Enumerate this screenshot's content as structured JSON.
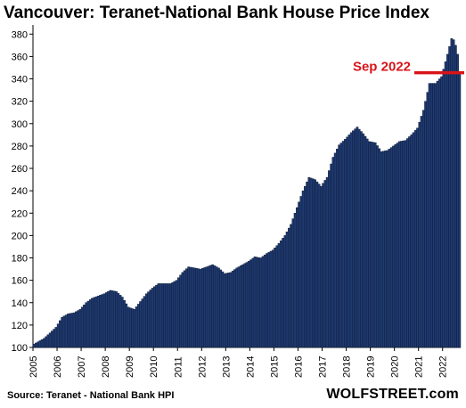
{
  "chart_data": {
    "type": "bar",
    "title": "Vancouver: Teranet-National  Bank House Price Index",
    "xlabel": "",
    "ylabel": "",
    "ylim": [
      100,
      385
    ],
    "yticks": [
      100,
      120,
      140,
      160,
      180,
      200,
      220,
      240,
      260,
      280,
      300,
      320,
      340,
      360,
      380
    ],
    "x_tick_labels": [
      "2005",
      "2006",
      "2007",
      "2008",
      "2009",
      "2010",
      "2011",
      "2012",
      "2013",
      "2014",
      "2015",
      "2016",
      "2017",
      "2018",
      "2019",
      "2020",
      "2021",
      "2022"
    ],
    "x_start": "2005-01",
    "x_end": "2022-09",
    "grid": false,
    "bar_color": "#1F3A70",
    "bar_edge_color": "#0A1530",
    "annotation": {
      "label": "Sep 2022",
      "value": 345.5,
      "color": "#D7141A"
    },
    "anchors": [
      [
        "2005-01",
        103
      ],
      [
        "2005-06",
        108
      ],
      [
        "2005-12",
        118
      ],
      [
        "2006-03",
        127
      ],
      [
        "2006-06",
        130
      ],
      [
        "2006-09",
        131
      ],
      [
        "2006-12",
        134
      ],
      [
        "2007-03",
        140
      ],
      [
        "2007-06",
        144
      ],
      [
        "2007-09",
        146
      ],
      [
        "2007-12",
        148
      ],
      [
        "2008-03",
        151
      ],
      [
        "2008-06",
        150
      ],
      [
        "2008-09",
        145
      ],
      [
        "2008-12",
        136
      ],
      [
        "2009-03",
        134
      ],
      [
        "2009-06",
        141
      ],
      [
        "2009-09",
        148
      ],
      [
        "2009-12",
        153
      ],
      [
        "2010-03",
        157
      ],
      [
        "2010-06",
        157
      ],
      [
        "2010-09",
        157
      ],
      [
        "2010-12",
        160
      ],
      [
        "2011-03",
        167
      ],
      [
        "2011-06",
        172
      ],
      [
        "2011-09",
        171
      ],
      [
        "2011-12",
        170
      ],
      [
        "2012-03",
        172
      ],
      [
        "2012-06",
        174
      ],
      [
        "2012-09",
        171
      ],
      [
        "2012-12",
        166
      ],
      [
        "2013-03",
        167
      ],
      [
        "2013-06",
        171
      ],
      [
        "2013-09",
        174
      ],
      [
        "2013-12",
        177
      ],
      [
        "2014-03",
        181
      ],
      [
        "2014-06",
        180
      ],
      [
        "2014-09",
        184
      ],
      [
        "2014-12",
        187
      ],
      [
        "2015-03",
        193
      ],
      [
        "2015-06",
        200
      ],
      [
        "2015-09",
        210
      ],
      [
        "2015-12",
        225
      ],
      [
        "2016-03",
        240
      ],
      [
        "2016-06",
        252
      ],
      [
        "2016-09",
        250
      ],
      [
        "2016-12",
        244
      ],
      [
        "2017-03",
        252
      ],
      [
        "2017-06",
        270
      ],
      [
        "2017-09",
        281
      ],
      [
        "2017-12",
        286
      ],
      [
        "2018-03",
        292
      ],
      [
        "2018-06",
        297
      ],
      [
        "2018-09",
        291
      ],
      [
        "2018-12",
        284
      ],
      [
        "2019-03",
        283
      ],
      [
        "2019-06",
        275
      ],
      [
        "2019-09",
        276
      ],
      [
        "2019-12",
        280
      ],
      [
        "2020-03",
        284
      ],
      [
        "2020-06",
        285
      ],
      [
        "2020-09",
        290
      ],
      [
        "2020-12",
        296
      ],
      [
        "2021-03",
        312
      ],
      [
        "2021-06",
        336
      ],
      [
        "2021-09",
        336
      ],
      [
        "2021-12",
        342
      ],
      [
        "2022-03",
        362
      ],
      [
        "2022-05",
        376
      ],
      [
        "2022-06",
        375
      ],
      [
        "2022-07",
        370
      ],
      [
        "2022-08",
        362
      ],
      [
        "2022-09",
        345.5
      ]
    ]
  },
  "footer": {
    "source": "Source: Teranet - National Bank HPI",
    "brand": "WOLFSTREET.com"
  }
}
